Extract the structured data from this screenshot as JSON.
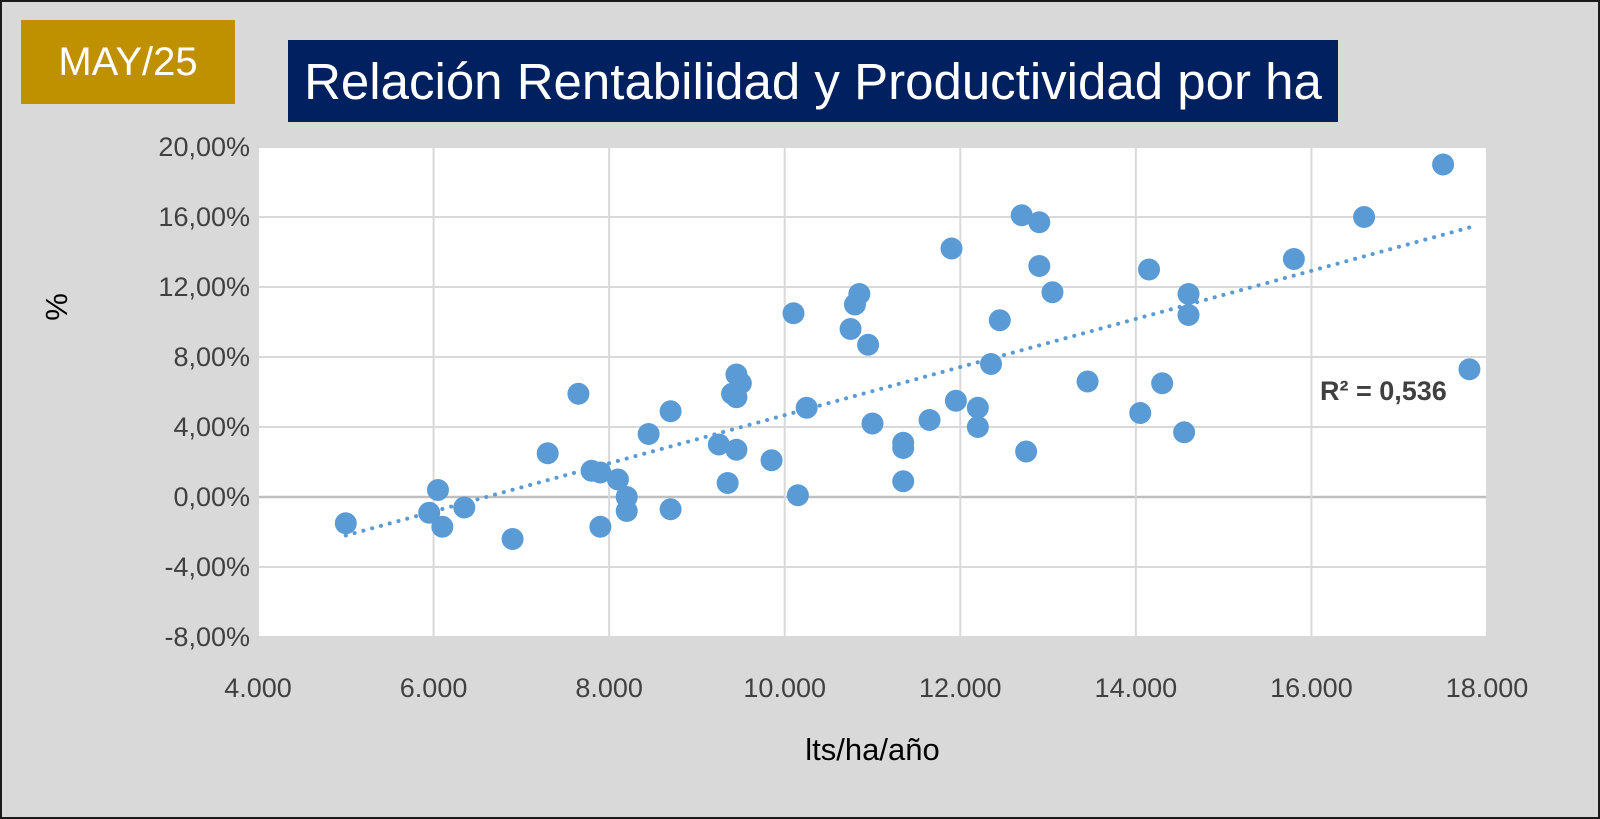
{
  "badge": {
    "label": "MAY/25"
  },
  "colors": {
    "badge_bg": "#bf9000",
    "title_bg": "#002060",
    "point": "#5b9bd5",
    "grid": "#d9d9d9",
    "zero_line": "#bfbfbf"
  },
  "chart_data": {
    "type": "scatter",
    "title": "Relación Rentabilidad y Productividad por ha",
    "xlabel": "lts/ha/año",
    "ylabel": "%",
    "xlim": [
      4000,
      18000
    ],
    "ylim": [
      -8,
      20
    ],
    "x_ticks": [
      4000,
      6000,
      8000,
      10000,
      12000,
      14000,
      16000,
      18000
    ],
    "x_tick_labels": [
      "4.000",
      "6.000",
      "8.000",
      "10.000",
      "12.000",
      "14.000",
      "16.000",
      "18.000"
    ],
    "y_ticks": [
      -8,
      -4,
      0,
      4,
      8,
      12,
      16,
      20
    ],
    "y_tick_labels": [
      "-8,00%",
      "-4,00%",
      "0,00%",
      "4,00%",
      "8,00%",
      "12,00%",
      "16,00%",
      "20,00%"
    ],
    "grid": true,
    "legend": "none",
    "trendline": {
      "type": "linear",
      "style": "dotted",
      "x_range": [
        5000,
        17800
      ],
      "y_start": -2.2,
      "y_end": 15.4,
      "r2_label": "R² = 0,536"
    },
    "points": [
      [
        5000,
        -1.5
      ],
      [
        5950,
        -0.9
      ],
      [
        6050,
        0.4
      ],
      [
        6100,
        -1.7
      ],
      [
        6350,
        -0.6
      ],
      [
        6900,
        -2.4
      ],
      [
        7300,
        2.5
      ],
      [
        7650,
        5.9
      ],
      [
        7800,
        1.5
      ],
      [
        7900,
        1.4
      ],
      [
        7900,
        -1.7
      ],
      [
        8100,
        1.0
      ],
      [
        8200,
        0.0
      ],
      [
        8200,
        -0.8
      ],
      [
        8450,
        3.6
      ],
      [
        8700,
        4.9
      ],
      [
        8700,
        -0.7
      ],
      [
        9250,
        3.0
      ],
      [
        9350,
        0.8
      ],
      [
        9400,
        5.9
      ],
      [
        9450,
        5.7
      ],
      [
        9450,
        7.0
      ],
      [
        9500,
        6.5
      ],
      [
        9450,
        2.7
      ],
      [
        9850,
        2.1
      ],
      [
        10100,
        10.5
      ],
      [
        10150,
        0.1
      ],
      [
        10250,
        5.1
      ],
      [
        10750,
        9.6
      ],
      [
        10800,
        11.0
      ],
      [
        10850,
        11.6
      ],
      [
        10950,
        8.7
      ],
      [
        11000,
        4.2
      ],
      [
        11350,
        2.8
      ],
      [
        11350,
        3.1
      ],
      [
        11350,
        0.9
      ],
      [
        11650,
        4.4
      ],
      [
        11900,
        14.2
      ],
      [
        11950,
        5.5
      ],
      [
        12200,
        5.1
      ],
      [
        12200,
        4.0
      ],
      [
        12350,
        7.6
      ],
      [
        12450,
        10.1
      ],
      [
        12700,
        16.1
      ],
      [
        12750,
        2.6
      ],
      [
        12900,
        15.7
      ],
      [
        12900,
        13.2
      ],
      [
        13050,
        11.7
      ],
      [
        13450,
        6.6
      ],
      [
        14050,
        4.8
      ],
      [
        14150,
        13.0
      ],
      [
        14300,
        6.5
      ],
      [
        14550,
        3.7
      ],
      [
        14600,
        11.6
      ],
      [
        14600,
        10.4
      ],
      [
        15800,
        13.6
      ],
      [
        16600,
        16.0
      ],
      [
        17500,
        19.0
      ],
      [
        17800,
        7.3
      ]
    ]
  }
}
